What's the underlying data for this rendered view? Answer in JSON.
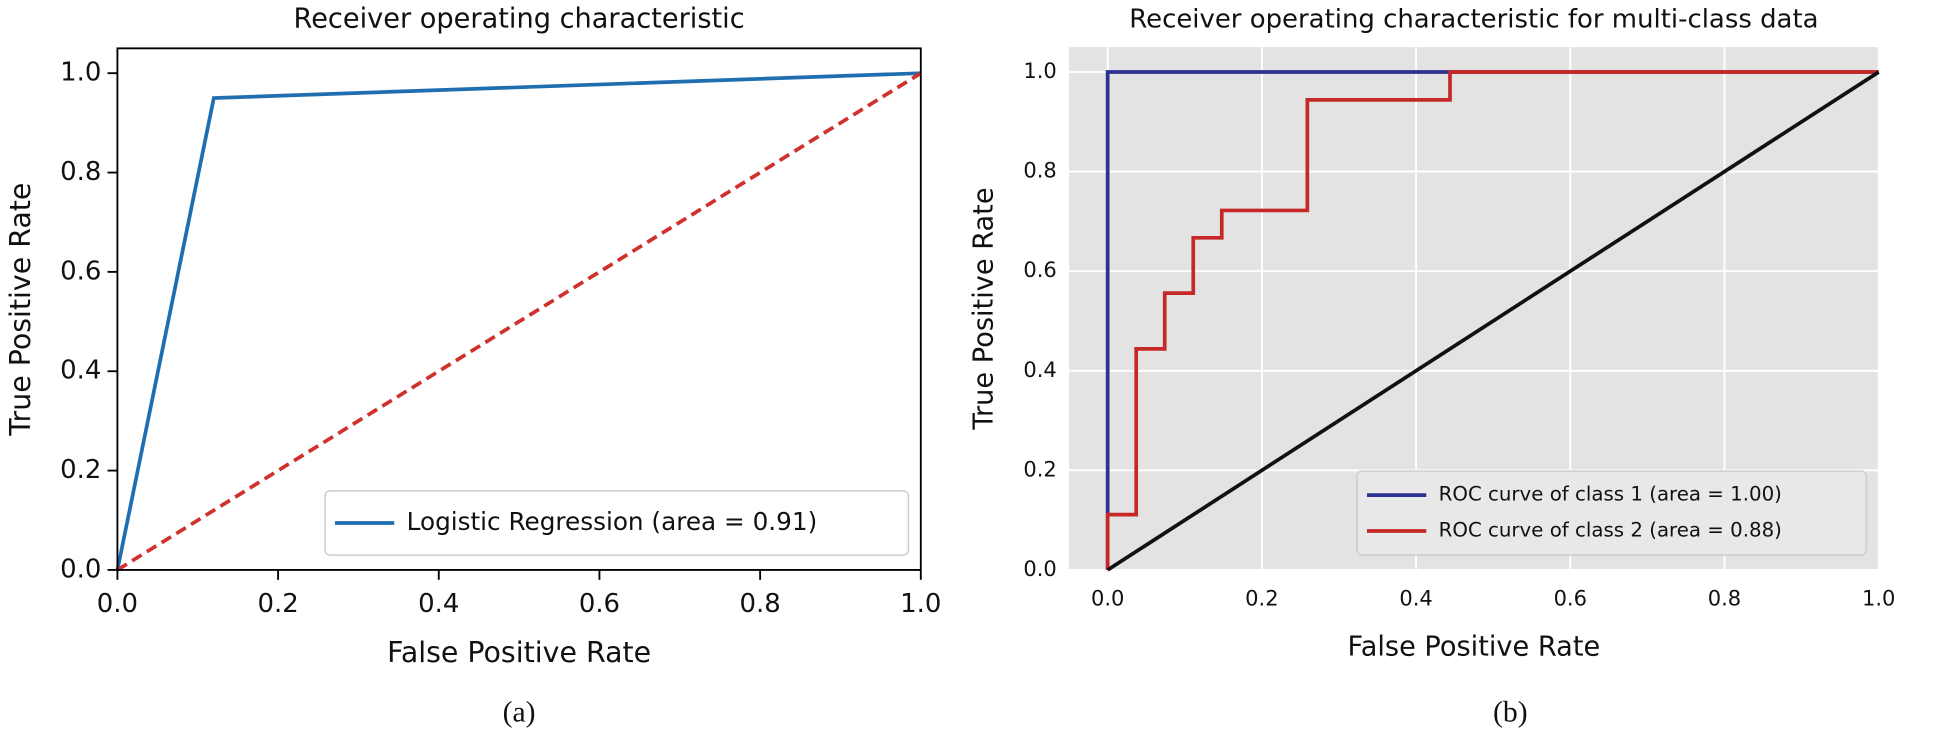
{
  "chart_data": [
    {
      "type": "line",
      "title": "Receiver operating characteristic",
      "xlabel": "False Positive Rate",
      "ylabel": "True Positive Rate",
      "caption": "(a)",
      "xlim": [
        0,
        1
      ],
      "ylim": [
        0,
        1.05
      ],
      "xticks": [
        {
          "value": 0,
          "label": "0.0"
        },
        {
          "value": 0.2,
          "label": "0.2"
        },
        {
          "value": 0.4,
          "label": "0.4"
        },
        {
          "value": 0.6,
          "label": "0.6"
        },
        {
          "value": 0.8,
          "label": "0.8"
        },
        {
          "value": 1,
          "label": "1.0"
        }
      ],
      "yticks": [
        {
          "value": 0,
          "label": "0.0"
        },
        {
          "value": 0.2,
          "label": "0.2"
        },
        {
          "value": 0.4,
          "label": "0.4"
        },
        {
          "value": 0.6,
          "label": "0.6"
        },
        {
          "value": 0.8,
          "label": "0.8"
        },
        {
          "value": 1,
          "label": "1.0"
        }
      ],
      "grid": false,
      "background": "#ffffff",
      "legend": "lower right",
      "series": [
        {
          "name": "Logistic Regression (area = 0.91)",
          "color": "#1f6fb0",
          "x": [
            0,
            0.12,
            1
          ],
          "values": [
            0,
            0.95,
            1
          ]
        },
        {
          "color": "#d0312d",
          "dashed": true,
          "x": [
            0,
            1
          ],
          "values": [
            0,
            1
          ]
        }
      ]
    },
    {
      "type": "line",
      "title": "Receiver operating characteristic for multi-class data",
      "xlabel": "False Positive Rate",
      "ylabel": "True Positive Rate",
      "caption": "(b)",
      "xlim": [
        -0.05,
        1
      ],
      "ylim": [
        0,
        1.05
      ],
      "xticks": [
        {
          "value": 0,
          "label": "0.0"
        },
        {
          "value": 0.2,
          "label": "0.2"
        },
        {
          "value": 0.4,
          "label": "0.4"
        },
        {
          "value": 0.6,
          "label": "0.6"
        },
        {
          "value": 0.8,
          "label": "0.8"
        },
        {
          "value": 1,
          "label": "1.0"
        }
      ],
      "yticks": [
        {
          "value": 0,
          "label": "0.0"
        },
        {
          "value": 0.2,
          "label": "0.2"
        },
        {
          "value": 0.4,
          "label": "0.4"
        },
        {
          "value": 0.6,
          "label": "0.6"
        },
        {
          "value": 0.8,
          "label": "0.8"
        },
        {
          "value": 1,
          "label": "1.0"
        }
      ],
      "grid": true,
      "background": "#e3e3e3",
      "legend": "lower right",
      "series": [
        {
          "name": "ROC curve of class 1 (area = 1.00)",
          "color": "#2e3192",
          "x": [
            0,
            0,
            1
          ],
          "values": [
            0,
            1,
            1
          ]
        },
        {
          "name": "ROC curve of class 2 (area = 0.88)",
          "color": "#c62828",
          "x": [
            0,
            0,
            0.037,
            0.037,
            0.074,
            0.074,
            0.111,
            0.111,
            0.148,
            0.148,
            0.259,
            0.259,
            0.444,
            0.444,
            1
          ],
          "values": [
            0,
            0.111,
            0.111,
            0.444,
            0.444,
            0.556,
            0.556,
            0.667,
            0.667,
            0.722,
            0.722,
            0.944,
            0.944,
            1,
            1
          ]
        },
        {
          "color": "#111111",
          "x": [
            0,
            1
          ],
          "values": [
            0,
            1
          ]
        }
      ]
    }
  ]
}
